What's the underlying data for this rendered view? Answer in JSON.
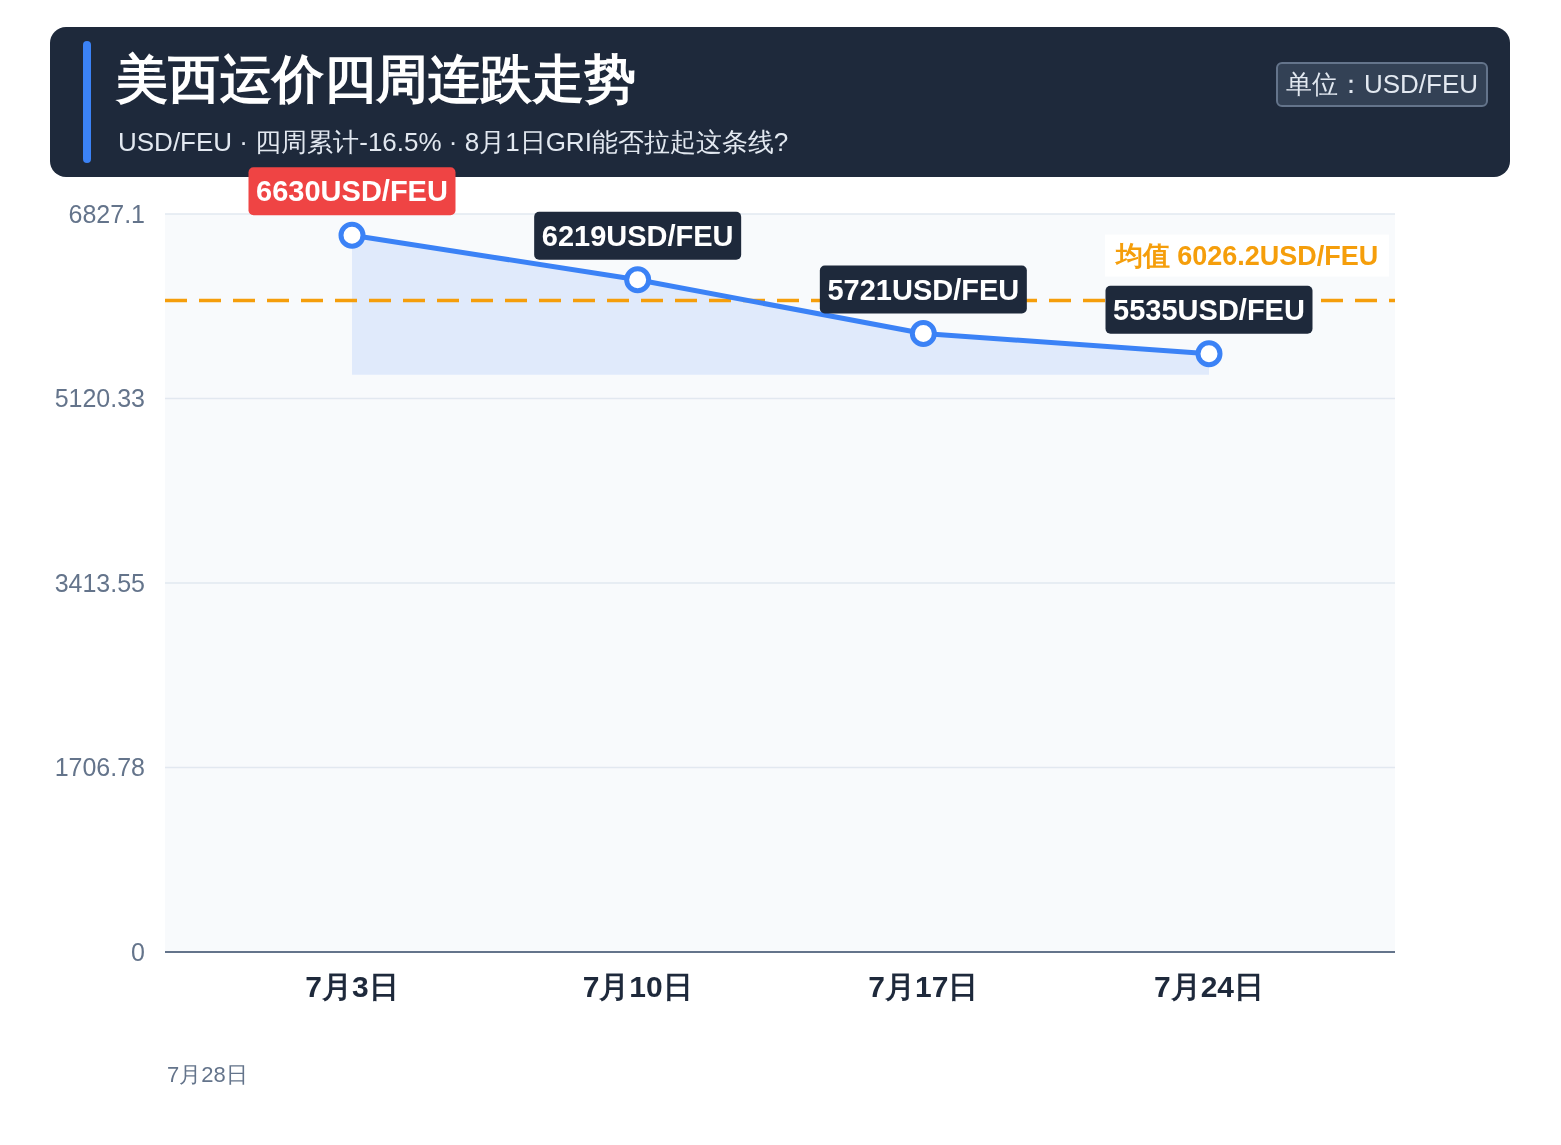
{
  "chart_data": {
    "type": "line",
    "title": "美西运价四周连跌走势",
    "subtitle": "USD/FEU · 四周累计-16.5% · 8月1日GRI能否拉起这条线?",
    "categories": [
      "7月3日",
      "7月10日",
      "7月17日",
      "7月24日"
    ],
    "series": [
      {
        "color": "#3b82f6",
        "values": [
          6630,
          6219,
          5721,
          5535
        ],
        "lower": [
          5340,
          5340,
          5340,
          5340
        ],
        "upper": [
          6630,
          6219,
          5721,
          5535
        ],
        "value_labels": [
          "6630USD/FEU",
          "6219USD/FEU",
          "5721USD/FEU",
          "5535USD/FEU"
        ]
      }
    ],
    "ylim": [
      0,
      6827.1
    ],
    "yticks": [
      0,
      1706.78,
      3413.55,
      5120.33,
      6827.1
    ],
    "grid": "y",
    "marker": "circle",
    "line_style": "solid",
    "legend": false,
    "ref_lines": [
      {
        "axis": "y",
        "value": 6026.2,
        "label": "均值 6026.2USD/FEU",
        "color": "#f59e0b",
        "line_style": "dashed"
      }
    ],
    "annotations": [
      "单位：USD/FEU",
      "7月28日"
    ]
  }
}
